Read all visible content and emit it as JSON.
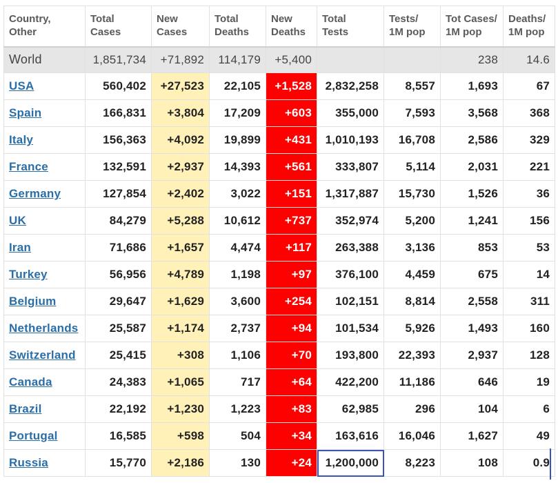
{
  "headers": [
    [
      "Country,",
      "Other"
    ],
    [
      "Total",
      "Cases"
    ],
    [
      "New",
      "Cases"
    ],
    [
      "Total",
      "Deaths"
    ],
    [
      "New",
      "Deaths"
    ],
    [
      "Total",
      "Tests"
    ],
    [
      "Tests/",
      "1M pop"
    ],
    [
      "Tot Cases/",
      "1M pop"
    ],
    [
      "Deaths/",
      "1M pop"
    ]
  ],
  "world": [
    "World",
    "1,851,734",
    "+71,892",
    "114,179",
    "+5,400",
    "",
    "",
    "238",
    "14.6"
  ],
  "rows": [
    [
      "USA",
      "560,402",
      "+27,523",
      "22,105",
      "+1,528",
      "2,832,258",
      "8,557",
      "1,693",
      "67"
    ],
    [
      "Spain",
      "166,831",
      "+3,804",
      "17,209",
      "+603",
      "355,000",
      "7,593",
      "3,568",
      "368"
    ],
    [
      "Italy",
      "156,363",
      "+4,092",
      "19,899",
      "+431",
      "1,010,193",
      "16,708",
      "2,586",
      "329"
    ],
    [
      "France",
      "132,591",
      "+2,937",
      "14,393",
      "+561",
      "333,807",
      "5,114",
      "2,031",
      "221"
    ],
    [
      "Germany",
      "127,854",
      "+2,402",
      "3,022",
      "+151",
      "1,317,887",
      "15,730",
      "1,526",
      "36"
    ],
    [
      "UK",
      "84,279",
      "+5,288",
      "10,612",
      "+737",
      "352,974",
      "5,200",
      "1,241",
      "156"
    ],
    [
      "Iran",
      "71,686",
      "+1,657",
      "4,474",
      "+117",
      "263,388",
      "3,136",
      "853",
      "53"
    ],
    [
      "Turkey",
      "56,956",
      "+4,789",
      "1,198",
      "+97",
      "376,100",
      "4,459",
      "675",
      "14"
    ],
    [
      "Belgium",
      "29,647",
      "+1,629",
      "3,600",
      "+254",
      "102,151",
      "8,814",
      "2,558",
      "311"
    ],
    [
      "Netherlands",
      "25,587",
      "+1,174",
      "2,737",
      "+94",
      "101,534",
      "5,926",
      "1,493",
      "160"
    ],
    [
      "Switzerland",
      "25,415",
      "+308",
      "1,106",
      "+70",
      "193,800",
      "22,393",
      "2,937",
      "128"
    ],
    [
      "Canada",
      "24,383",
      "+1,065",
      "717",
      "+64",
      "422,200",
      "11,186",
      "646",
      "19"
    ],
    [
      "Brazil",
      "22,192",
      "+1,230",
      "1,223",
      "+83",
      "62,985",
      "296",
      "104",
      "6"
    ],
    [
      "Portugal",
      "16,585",
      "+598",
      "504",
      "+34",
      "163,616",
      "16,046",
      "1,627",
      "49"
    ],
    [
      "Russia",
      "15,770",
      "+2,186",
      "130",
      "+24",
      "1,200,000",
      "8,223",
      "108",
      "0.9"
    ]
  ]
}
